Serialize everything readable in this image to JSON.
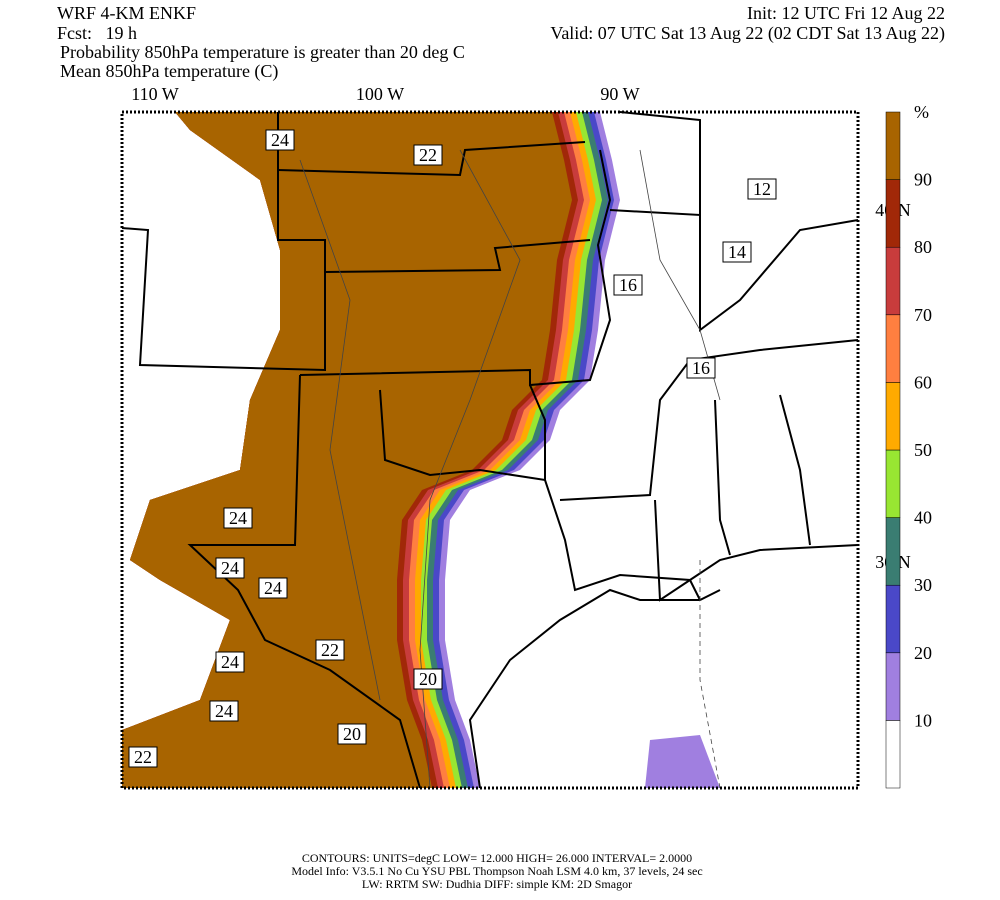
{
  "header": {
    "model": "WRF 4-KM ENKF",
    "forecast": "Fcst:   19 h",
    "init": "Init: 12 UTC Fri 12 Aug 22",
    "valid": "Valid: 07 UTC Sat 13 Aug 22 (02 CDT Sat 13 Aug 22)",
    "field1": "Probability 850hPa temperature is greater than 20 deg C",
    "field2": "Mean 850hPa temperature (C)"
  },
  "longitudes": [
    "110 W",
    "100 W",
    "90 W"
  ],
  "latitudes": [
    "40 N",
    "30 N"
  ],
  "contour_labels": [
    "24",
    "22",
    "12",
    "14",
    "16",
    "16",
    "24",
    "24",
    "24",
    "24",
    "24",
    "22",
    "20",
    "20",
    "22"
  ],
  "colorbar": {
    "unit": "%",
    "ticks": [
      "10",
      "20",
      "30",
      "40",
      "50",
      "60",
      "70",
      "80",
      "90"
    ],
    "colors": [
      "#ffffff",
      "#a07fe0",
      "#4a48c8",
      "#3a7d72",
      "#98e632",
      "#ffaa00",
      "#ff7f40",
      "#c83c3c",
      "#a12808",
      "#a86400"
    ]
  },
  "footer": [
    "CONTOURS:  UNITS=degC  LOW=   12.000        HIGH=   26.000        INTERVAL=     2.0000",
    "Model Info: V3.5.1    No Cu    YSU PBL   Thompson      Noah LSM   4.0 km,   37 levels,     24 sec",
    "LW: RRTM  SW: Dudhia   DIFF: simple  KM: 2D Smagor"
  ]
}
